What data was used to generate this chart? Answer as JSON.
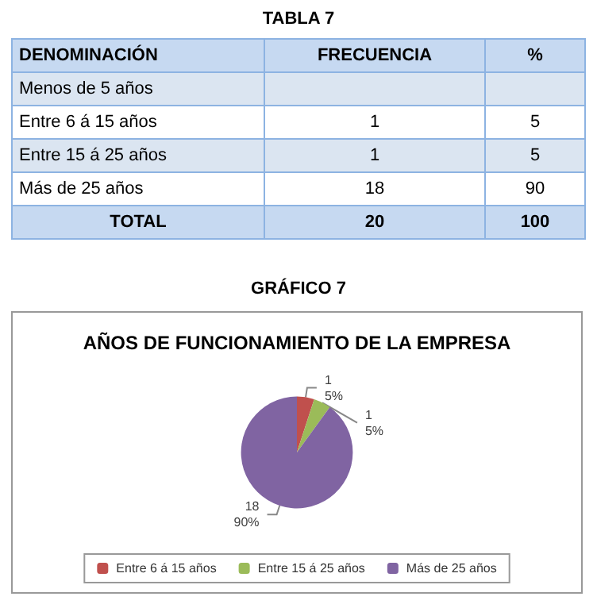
{
  "chart_data": [
    {
      "type": "other",
      "title": "TABLA 7",
      "annotations": [
        "DENOMINACIÓN",
        "FRECUENCIA",
        "%",
        "Menos de 5 años",
        "Entre 6 á 15 años",
        "1",
        "5",
        "Entre 15 á 25 años",
        "1",
        "5",
        "Más de 25 años",
        "18",
        "90",
        "TOTAL",
        "20",
        "100"
      ]
    },
    {
      "type": "pie",
      "title": "AÑOS DE FUNCIONAMIENTO DE LA EMPRESA",
      "categories": [
        "Entre 6 á 15 años",
        "Entre 15 á 25 años",
        "Más de 25 años"
      ],
      "values": [
        5,
        5,
        90
      ],
      "value_labels": [
        "1\n5%",
        "1\n5%",
        "18\n90%"
      ],
      "colors": [
        "#c0504d",
        "#9bbb59",
        "#8064a2"
      ],
      "legend": "bottom",
      "annotations": [
        "GRÁFICO 7"
      ]
    }
  ]
}
